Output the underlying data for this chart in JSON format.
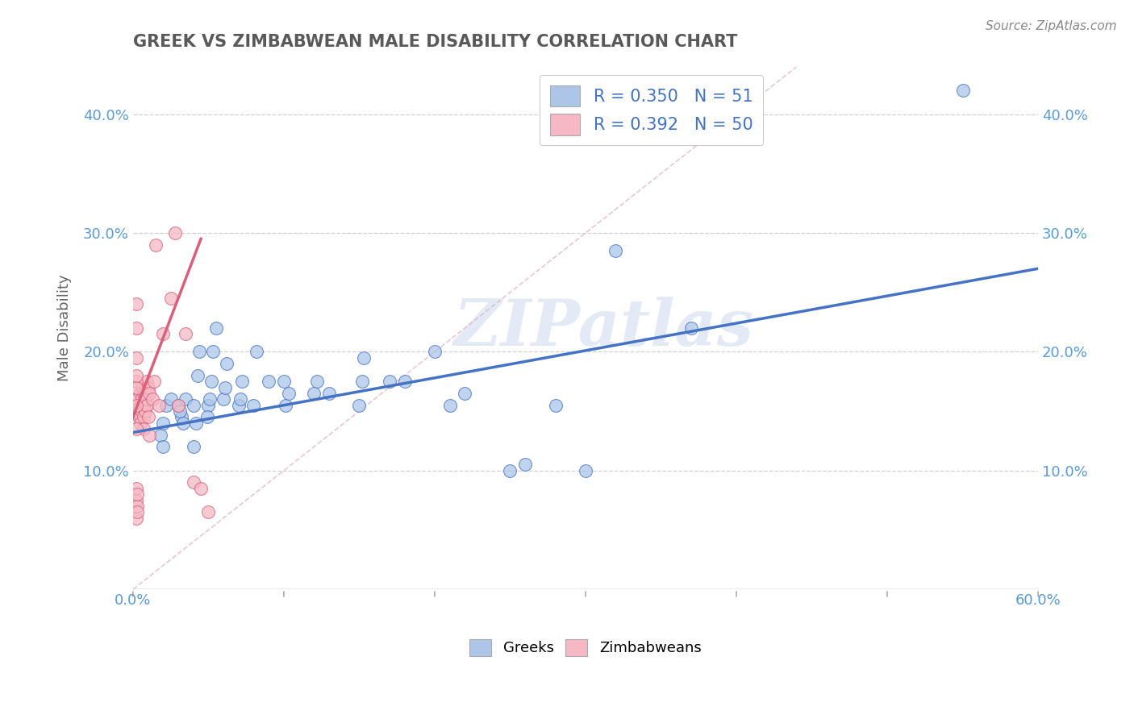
{
  "title": "GREEK VS ZIMBABWEAN MALE DISABILITY CORRELATION CHART",
  "source": "Source: ZipAtlas.com",
  "ylabel": "Male Disability",
  "xlim": [
    0.0,
    0.6
  ],
  "ylim": [
    0.0,
    0.44
  ],
  "x_ticks": [
    0.0,
    0.1,
    0.2,
    0.3,
    0.4,
    0.5,
    0.6
  ],
  "x_tick_labels": [
    "0.0%",
    "",
    "",
    "",
    "",
    "",
    "60.0%"
  ],
  "y_ticks": [
    0.0,
    0.1,
    0.2,
    0.3,
    0.4
  ],
  "y_tick_labels_left": [
    "",
    "10.0%",
    "20.0%",
    "30.0%",
    "40.0%"
  ],
  "y_tick_labels_right": [
    "",
    "10.0%",
    "20.0%",
    "30.0%",
    "40.0%"
  ],
  "blue_color": "#adc6e8",
  "pink_color": "#f5b8c4",
  "line_blue": "#4472c4",
  "line_pink": "#d9607a",
  "title_color": "#595959",
  "axis_label_color": "#5b9bd5",
  "pink_label_color": "#d9607a",
  "watermark": "ZIPatlas",
  "greeks_scatter": [
    [
      0.018,
      0.13
    ],
    [
      0.02,
      0.14
    ],
    [
      0.022,
      0.155
    ],
    [
      0.025,
      0.16
    ],
    [
      0.02,
      0.12
    ],
    [
      0.03,
      0.155
    ],
    [
      0.032,
      0.145
    ],
    [
      0.033,
      0.14
    ],
    [
      0.031,
      0.15
    ],
    [
      0.035,
      0.16
    ],
    [
      0.04,
      0.155
    ],
    [
      0.042,
      0.14
    ],
    [
      0.04,
      0.12
    ],
    [
      0.044,
      0.2
    ],
    [
      0.043,
      0.18
    ],
    [
      0.05,
      0.155
    ],
    [
      0.051,
      0.16
    ],
    [
      0.052,
      0.175
    ],
    [
      0.053,
      0.2
    ],
    [
      0.055,
      0.22
    ],
    [
      0.049,
      0.145
    ],
    [
      0.06,
      0.16
    ],
    [
      0.062,
      0.19
    ],
    [
      0.061,
      0.17
    ],
    [
      0.07,
      0.155
    ],
    [
      0.071,
      0.16
    ],
    [
      0.072,
      0.175
    ],
    [
      0.08,
      0.155
    ],
    [
      0.082,
      0.2
    ],
    [
      0.09,
      0.175
    ],
    [
      0.1,
      0.175
    ],
    [
      0.101,
      0.155
    ],
    [
      0.103,
      0.165
    ],
    [
      0.12,
      0.165
    ],
    [
      0.122,
      0.175
    ],
    [
      0.13,
      0.165
    ],
    [
      0.15,
      0.155
    ],
    [
      0.152,
      0.175
    ],
    [
      0.153,
      0.195
    ],
    [
      0.17,
      0.175
    ],
    [
      0.18,
      0.175
    ],
    [
      0.2,
      0.2
    ],
    [
      0.21,
      0.155
    ],
    [
      0.22,
      0.165
    ],
    [
      0.25,
      0.1
    ],
    [
      0.26,
      0.105
    ],
    [
      0.28,
      0.155
    ],
    [
      0.3,
      0.1
    ],
    [
      0.32,
      0.285
    ],
    [
      0.37,
      0.22
    ],
    [
      0.55,
      0.42
    ]
  ],
  "zimbabweans_scatter": [
    [
      0.003,
      0.155
    ],
    [
      0.004,
      0.15
    ],
    [
      0.003,
      0.16
    ],
    [
      0.004,
      0.145
    ],
    [
      0.005,
      0.155
    ],
    [
      0.005,
      0.145
    ],
    [
      0.005,
      0.165
    ],
    [
      0.005,
      0.14
    ],
    [
      0.006,
      0.16
    ],
    [
      0.006,
      0.15
    ],
    [
      0.006,
      0.17
    ],
    [
      0.007,
      0.155
    ],
    [
      0.007,
      0.165
    ],
    [
      0.007,
      0.145
    ],
    [
      0.007,
      0.135
    ],
    [
      0.008,
      0.165
    ],
    [
      0.008,
      0.16
    ],
    [
      0.008,
      0.15
    ],
    [
      0.009,
      0.175
    ],
    [
      0.009,
      0.155
    ],
    [
      0.01,
      0.17
    ],
    [
      0.01,
      0.145
    ],
    [
      0.011,
      0.165
    ],
    [
      0.011,
      0.13
    ],
    [
      0.013,
      0.16
    ],
    [
      0.014,
      0.175
    ],
    [
      0.015,
      0.29
    ],
    [
      0.017,
      0.155
    ],
    [
      0.02,
      0.215
    ],
    [
      0.025,
      0.245
    ],
    [
      0.028,
      0.3
    ],
    [
      0.03,
      0.155
    ],
    [
      0.035,
      0.215
    ],
    [
      0.04,
      0.09
    ],
    [
      0.045,
      0.085
    ],
    [
      0.002,
      0.24
    ],
    [
      0.002,
      0.22
    ],
    [
      0.002,
      0.195
    ],
    [
      0.002,
      0.175
    ],
    [
      0.002,
      0.155
    ],
    [
      0.002,
      0.135
    ],
    [
      0.002,
      0.085
    ],
    [
      0.002,
      0.075
    ],
    [
      0.002,
      0.06
    ],
    [
      0.002,
      0.17
    ],
    [
      0.002,
      0.18
    ],
    [
      0.003,
      0.07
    ],
    [
      0.003,
      0.08
    ],
    [
      0.003,
      0.065
    ],
    [
      0.05,
      0.065
    ]
  ],
  "blue_line_x": [
    0.0,
    0.6
  ],
  "blue_line_y": [
    0.132,
    0.27
  ],
  "pink_line_x": [
    0.0,
    0.045
  ],
  "pink_line_y": [
    0.145,
    0.295
  ]
}
